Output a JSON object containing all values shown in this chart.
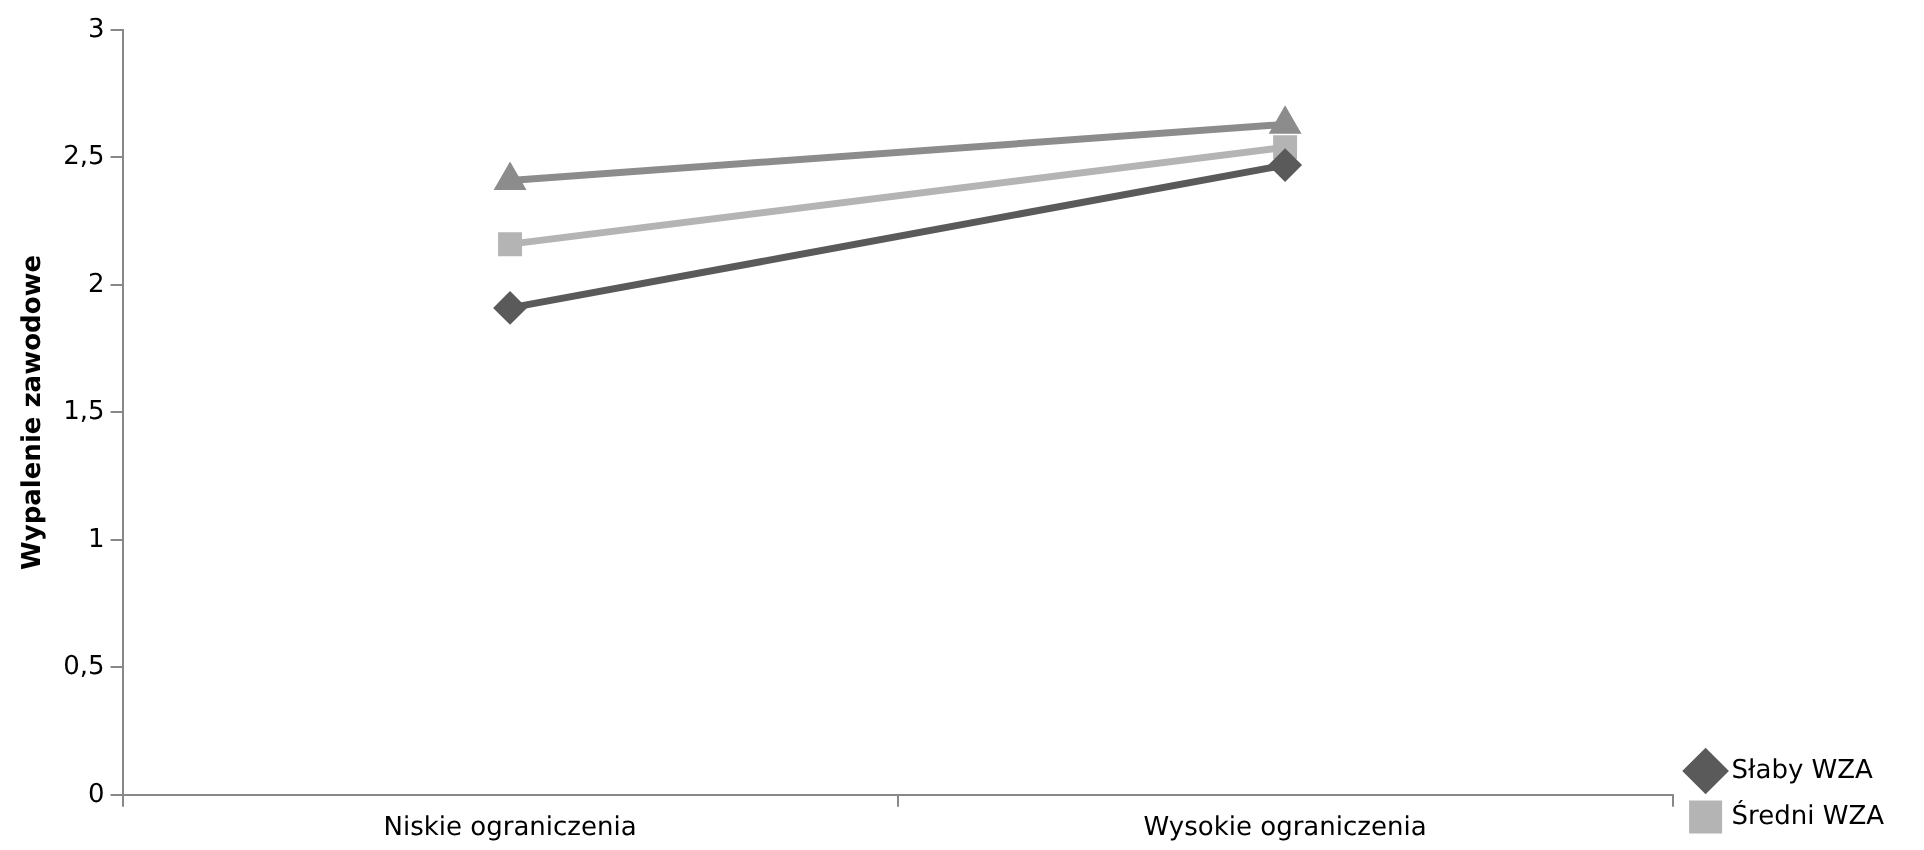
{
  "chart_data": {
    "type": "line",
    "ylabel": "Wypalenie zawodowe",
    "categories": [
      "Niskie ograniczenia",
      "Wysokie ograniczenia"
    ],
    "series": [
      {
        "name": "Słaby WZA",
        "color": "#5a5a5a",
        "marker": "diamond",
        "values": [
          1.91,
          2.47
        ]
      },
      {
        "name": "Średni WZA",
        "color": "#b4b4b4",
        "marker": "square",
        "values": [
          2.16,
          2.54
        ]
      },
      {
        "color": "#8c8c8c",
        "marker": "triangle",
        "values": [
          2.41,
          2.63
        ]
      }
    ],
    "ylim": [
      0,
      3
    ],
    "yticks": [
      0,
      {
        "value": 0.5,
        "label": "0,5"
      },
      1,
      {
        "value": 1.5,
        "label": "1,5"
      },
      2,
      {
        "value": 2.5,
        "label": "2,5"
      },
      3
    ],
    "grid": false,
    "legend": "bottom right"
  }
}
